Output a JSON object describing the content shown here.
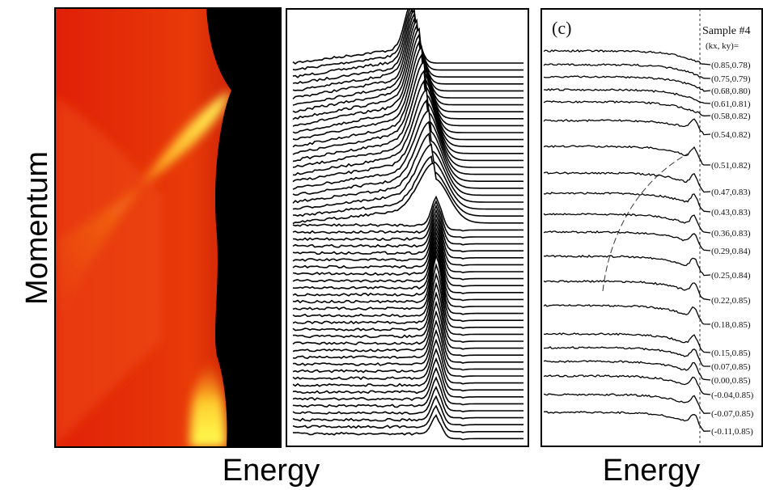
{
  "figure": {
    "y_label": "Momentum",
    "x_label_left": "Energy",
    "x_label_right": "Energy",
    "panel_c": {
      "tag": "(c)",
      "sample": "Sample #4",
      "k_header": "(kx, ky)=",
      "k_labels": [
        "(0.85,0.78)",
        "(0.75,0.79)",
        "(0.68,0.80)",
        "(0.61,0.81)",
        "(0.58,0.82)",
        "(0.54,0.82)",
        "(0.51,0.82)",
        "(0.47,0.83)",
        "(0.43,0.83)",
        "(0.36,0.83)",
        "(0.29,0.84)",
        "(0.25,0.84)",
        "(0.22,0.85)",
        "(0.18,0.85)",
        "(0.15,0.85)",
        "(0.07,0.85)",
        "(0.00,0.85)",
        "(-0.04,0.85)",
        "(-0.07,0.85)",
        "(-0.11,0.85)"
      ]
    }
  }
}
